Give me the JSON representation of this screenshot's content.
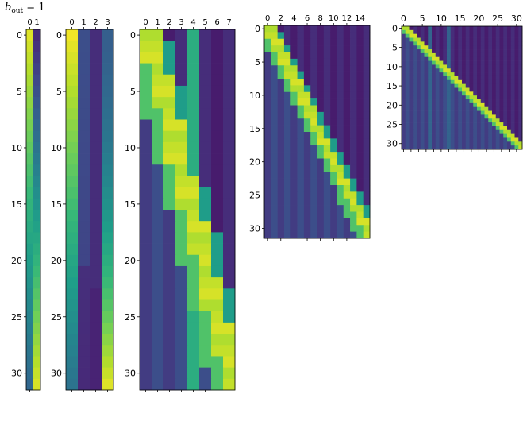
{
  "title": {
    "main": "b",
    "sub": "out",
    "rest": " = 1"
  },
  "colormap": [
    "#440154",
    "#482777",
    "#3e4989",
    "#31688e",
    "#26828e",
    "#1f9e89",
    "#35b779",
    "#6ece58",
    "#b5de2b",
    "#fde725"
  ],
  "chart_data": [
    {
      "type": "heatmap",
      "rows": 32,
      "cols": 2,
      "xticks": [
        0,
        1
      ],
      "yticks": [
        0,
        5,
        10,
        15,
        20,
        25,
        30
      ],
      "generator": "two-channel gradient"
    },
    {
      "type": "heatmap",
      "rows": 32,
      "cols": 4,
      "xticks": [
        0,
        1,
        2,
        3
      ],
      "yticks": [
        0,
        5,
        10,
        15,
        20,
        25,
        30
      ],
      "generator": "four-channel gradient"
    },
    {
      "type": "heatmap",
      "rows": 32,
      "cols": 8,
      "xticks": [
        0,
        1,
        2,
        3,
        4,
        5,
        6,
        7
      ],
      "yticks": [
        0,
        5,
        10,
        15,
        20,
        25,
        30
      ],
      "generator": "diagonal band"
    },
    {
      "type": "heatmap",
      "rows": 32,
      "cols": 16,
      "xticks": [
        0,
        2,
        4,
        6,
        8,
        10,
        12,
        14
      ],
      "yticks": [
        0,
        5,
        10,
        15,
        20,
        25,
        30
      ],
      "generator": "diagonal band"
    },
    {
      "type": "heatmap",
      "rows": 32,
      "cols": 32,
      "xticks": [
        0,
        5,
        10,
        15,
        20,
        25,
        30
      ],
      "yticks": [
        0,
        5,
        10,
        15,
        20,
        25,
        30
      ],
      "generator": "diagonal band"
    }
  ]
}
